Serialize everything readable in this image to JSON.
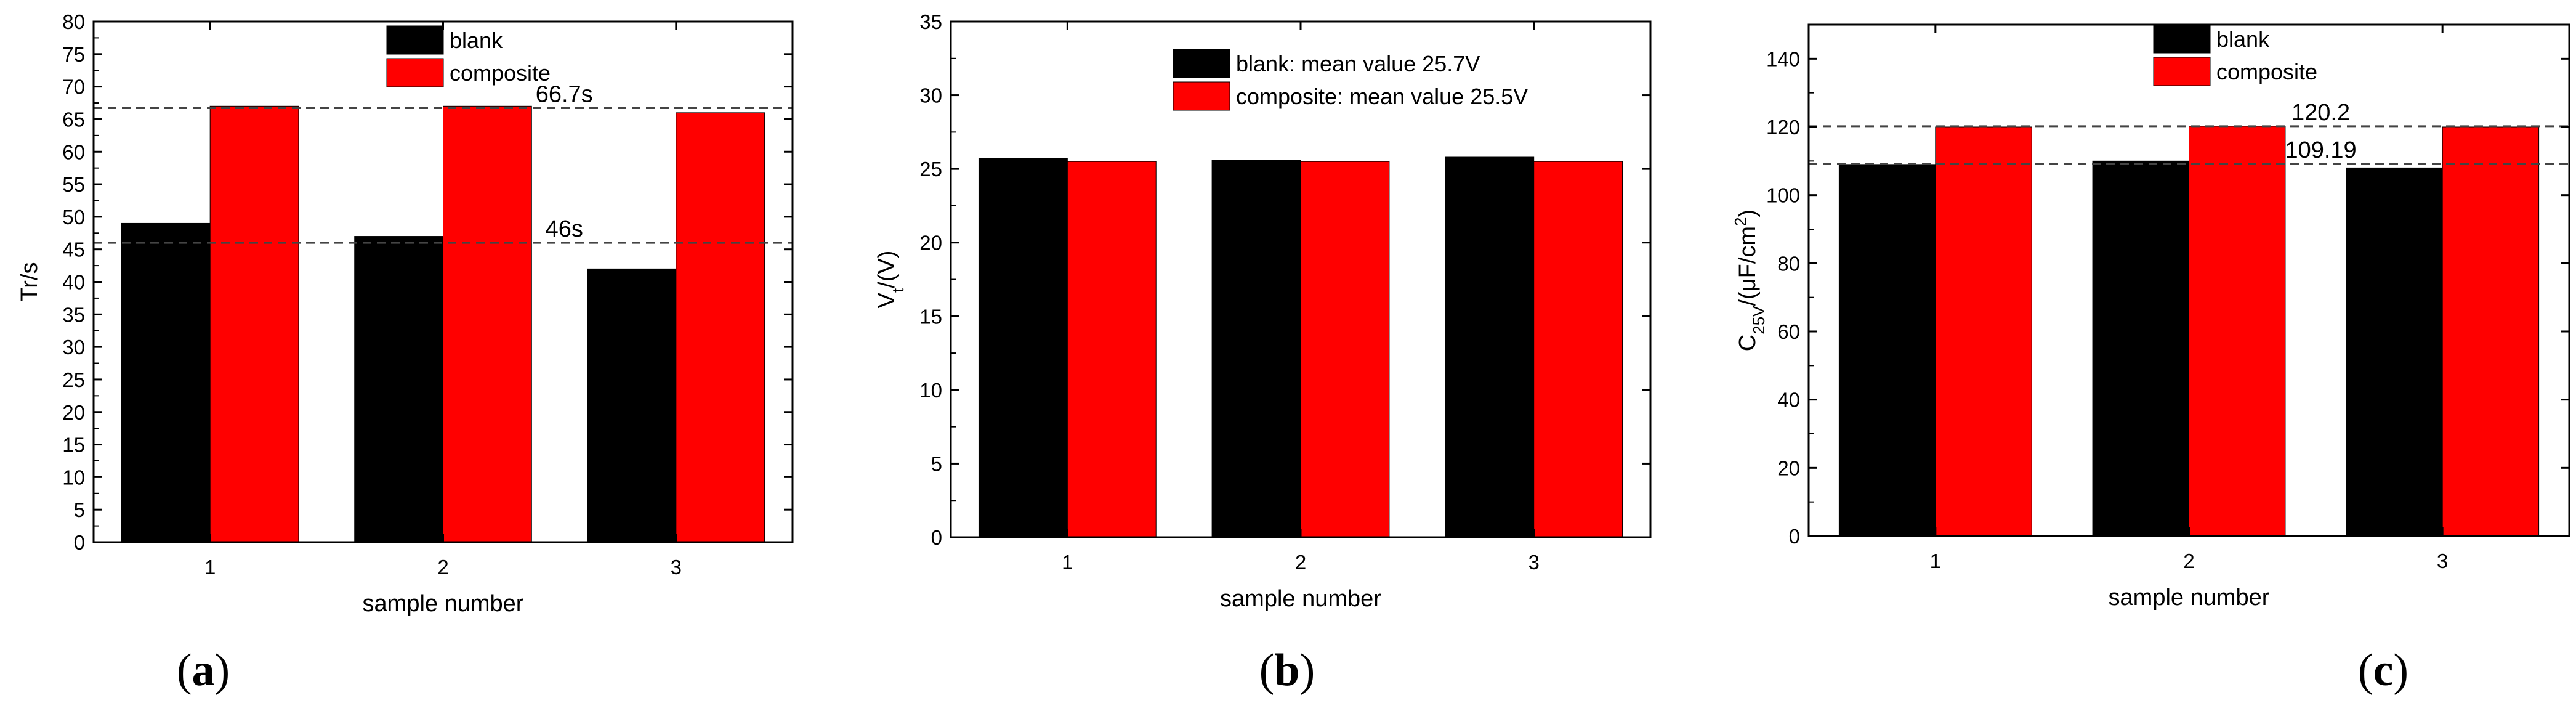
{
  "chart_data": [
    {
      "type": "bar",
      "panel_label": "a",
      "categories": [
        "1",
        "2",
        "3"
      ],
      "series": [
        {
          "name": "blank",
          "values": [
            49,
            47,
            42
          ],
          "color": "#000000"
        },
        {
          "name": "composite",
          "values": [
            67,
            67,
            66
          ],
          "color": "#ff0000"
        }
      ],
      "xlabel": "sample number",
      "ylabel": "Tr/s",
      "ylabel_sub": "",
      "ylabel_rest": "",
      "ylim": [
        0,
        80
      ],
      "yticks": [
        0,
        5,
        10,
        15,
        20,
        25,
        30,
        35,
        40,
        45,
        50,
        55,
        60,
        65,
        70,
        75,
        80
      ],
      "reference_lines": [
        {
          "value": 66.7,
          "label": "66.7s"
        },
        {
          "value": 46,
          "label": "46s"
        }
      ],
      "legend_position": "top-center",
      "grid": false
    },
    {
      "type": "bar",
      "panel_label": "b",
      "categories": [
        "1",
        "2",
        "3"
      ],
      "series": [
        {
          "name": "blank: mean value 25.7V",
          "values": [
            25.7,
            25.6,
            25.8
          ],
          "color": "#000000"
        },
        {
          "name": "composite: mean value 25.5V",
          "values": [
            25.5,
            25.5,
            25.5
          ],
          "color": "#ff0000"
        }
      ],
      "xlabel": "sample number",
      "ylabel": "V",
      "ylabel_sub": "t",
      "ylabel_rest": "/(V)",
      "ylim": [
        0,
        35
      ],
      "yticks": [
        0,
        5,
        10,
        15,
        20,
        25,
        30,
        35
      ],
      "reference_lines": [],
      "legend_position": "top-center",
      "grid": false
    },
    {
      "type": "bar",
      "panel_label": "c",
      "categories": [
        "1",
        "2",
        "3"
      ],
      "series": [
        {
          "name": "blank",
          "values": [
            109,
            110,
            108
          ],
          "color": "#000000"
        },
        {
          "name": "composite",
          "values": [
            120,
            120.2,
            120
          ],
          "color": "#ff0000"
        }
      ],
      "xlabel": "sample number",
      "ylabel": "C",
      "ylabel_sub": "25V",
      "ylabel_rest": "/(μF/cm",
      "ylabel_sup": "2",
      "ylabel_end": ")",
      "ylim": [
        0,
        150
      ],
      "yticks": [
        0,
        20,
        40,
        60,
        80,
        100,
        120,
        140
      ],
      "reference_lines": [
        {
          "value": 120.2,
          "label": "120.2"
        },
        {
          "value": 109.19,
          "label": "109.19"
        }
      ],
      "legend_position": "top-center",
      "grid": false
    }
  ]
}
